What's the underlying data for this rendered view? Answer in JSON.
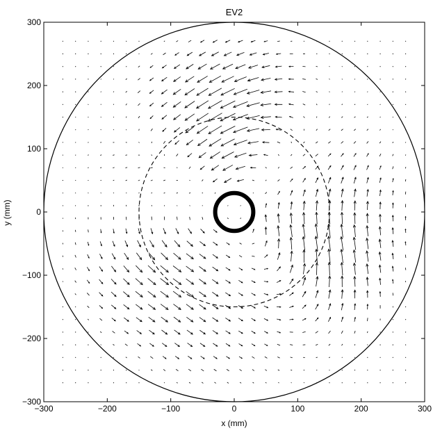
{
  "chart_data": {
    "type": "quiver",
    "title": "EV2",
    "xlabel": "x (mm)",
    "ylabel": "y (mm)",
    "xlim": [
      -300,
      300
    ],
    "ylim": [
      -300,
      300
    ],
    "xticks": [
      -300,
      -200,
      -100,
      0,
      100,
      200,
      300
    ],
    "yticks": [
      -300,
      -200,
      -100,
      0,
      100,
      200,
      300
    ],
    "xtick_labels": [
      "−300",
      "−200",
      "−100",
      "0",
      "100",
      "200",
      "300"
    ],
    "ytick_labels": [
      "−300",
      "−200",
      "−100",
      "0",
      "100",
      "200",
      "300"
    ],
    "grid": false,
    "vector_grid": {
      "x_min": -270,
      "x_max": 270,
      "y_min": -270,
      "y_max": 270,
      "step": 20
    },
    "field": "three-lobed swirl pattern inside the outer boundary circle",
    "outer_circle": {
      "cx": 0,
      "cy": 0,
      "r": 300,
      "style": "solid"
    },
    "dashed_circle": {
      "cx": 0,
      "cy": 0,
      "r": 150,
      "style": "dashed"
    },
    "inner_ring": {
      "cx": 0,
      "cy": 0,
      "r": 30,
      "style": "thick solid"
    },
    "colors": {
      "arrows": "#000000",
      "frame": "#000000",
      "background": "#ffffff"
    }
  }
}
